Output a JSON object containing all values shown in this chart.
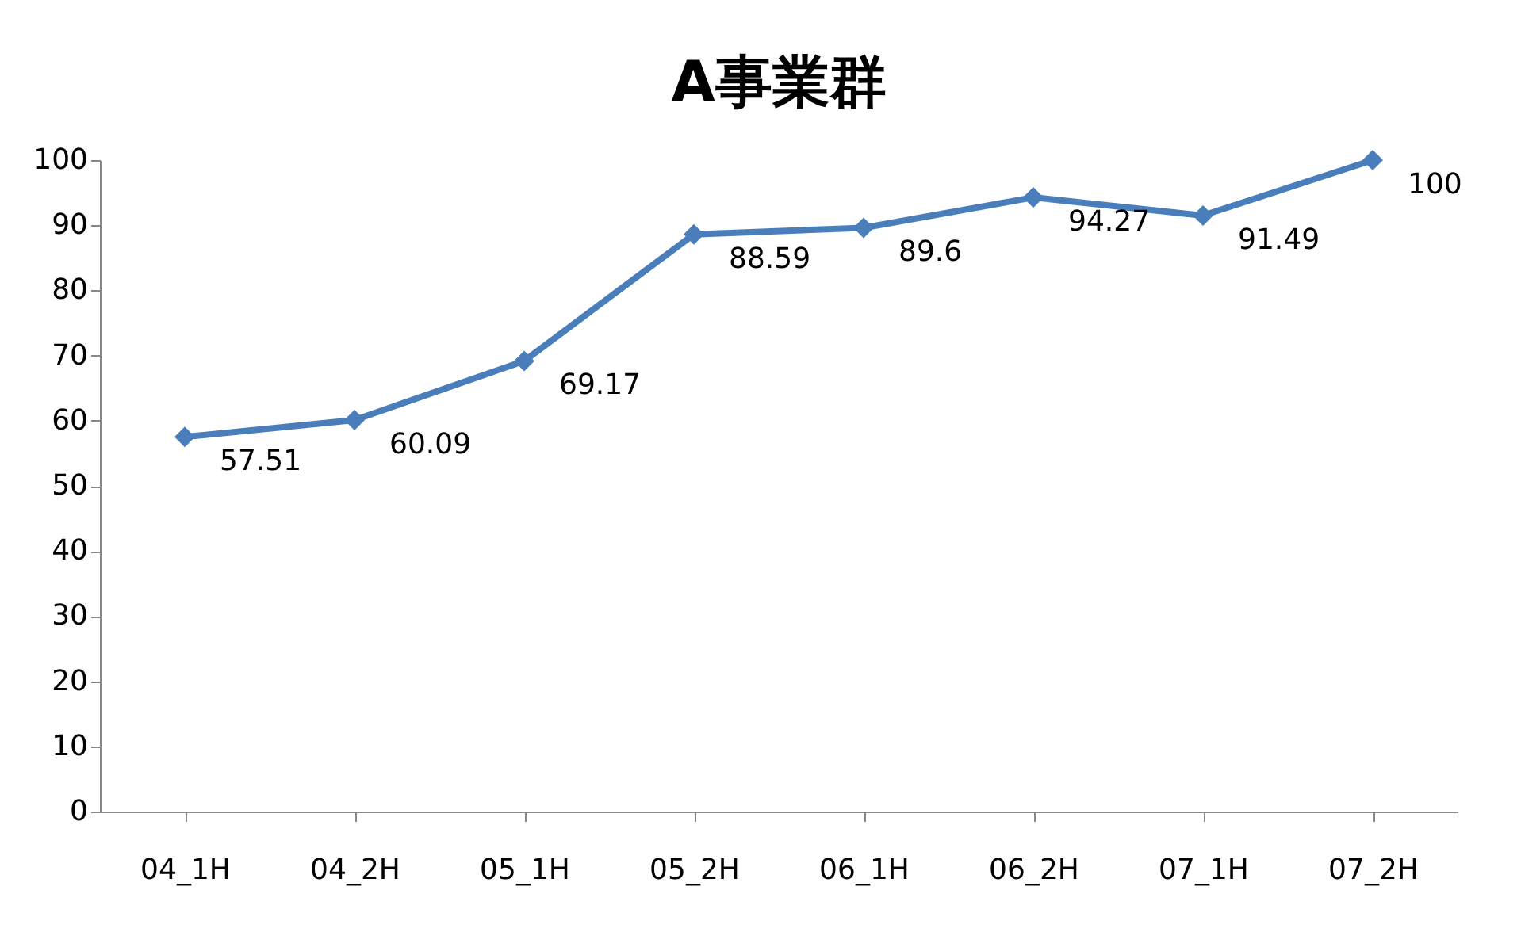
{
  "chart_data": {
    "type": "line",
    "title": "A事業群",
    "categories": [
      "04_1H",
      "04_2H",
      "05_1H",
      "05_2H",
      "06_1H",
      "06_2H",
      "07_1H",
      "07_2H"
    ],
    "series": [
      {
        "color": "#4a7ebb",
        "values": [
          57.51,
          60.09,
          69.17,
          88.59,
          89.6,
          94.27,
          91.49,
          100
        ]
      }
    ],
    "ylim": [
      0,
      100
    ],
    "yticks": [
      0,
      10,
      20,
      30,
      40,
      50,
      60,
      70,
      80,
      90,
      100
    ],
    "grid": false,
    "legend": false,
    "marker": "diamond",
    "line_style": "solid",
    "data_labels": true
  }
}
